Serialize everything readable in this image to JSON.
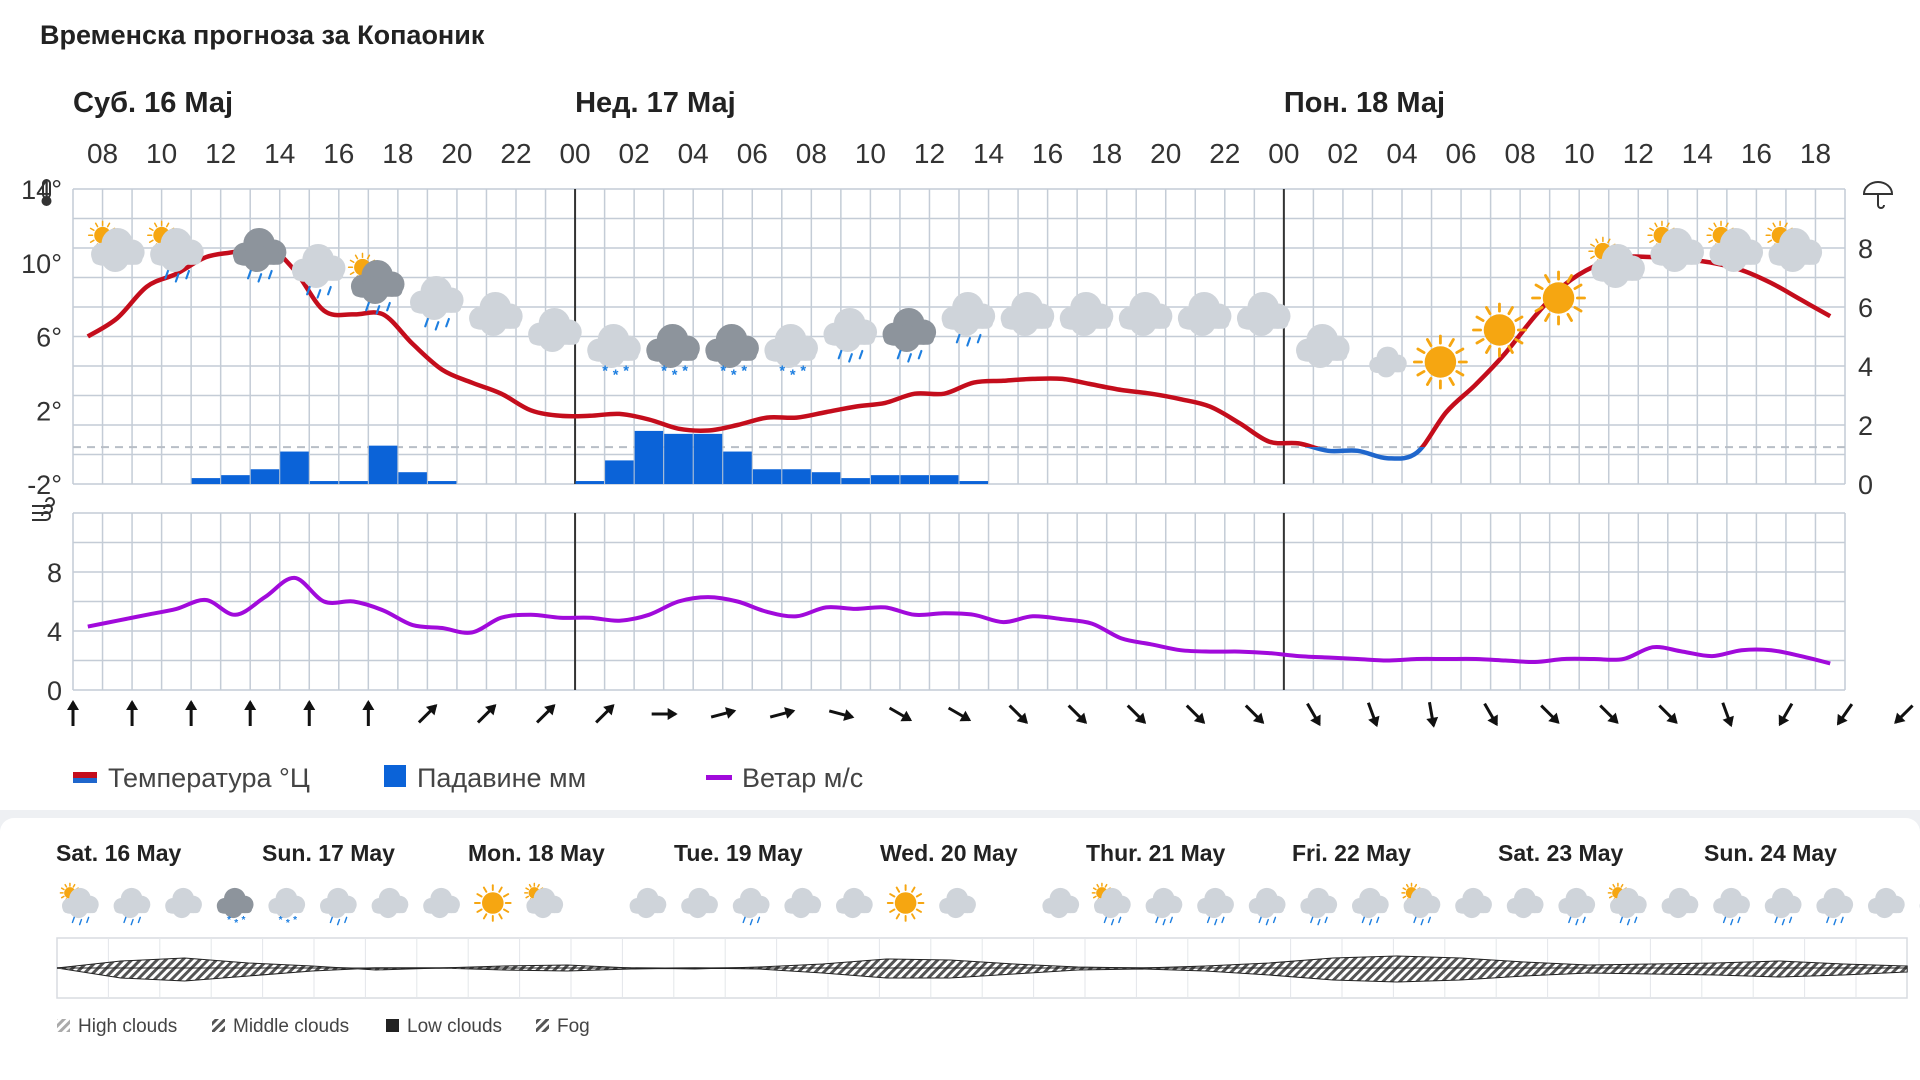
{
  "title": "Временска прогноза за Копаоник",
  "colors": {
    "temp": "#c40d1c",
    "temp_cold": "#1f66cc",
    "precip": "#0b63d8",
    "wind": "#a10adb",
    "grid": "#c4ccd6",
    "cloud": "#cfd4da",
    "sun": "#f6a611",
    "rain": "#1e7fe0"
  },
  "days": [
    {
      "label": "Суб. 16 Мај",
      "col": 0
    },
    {
      "label": "Нед. 17 Мај",
      "col": 17
    },
    {
      "label": "Пон. 18 Мај",
      "col": 41
    }
  ],
  "hour_labels": [
    "08",
    "10",
    "12",
    "14",
    "16",
    "18",
    "20",
    "22",
    "00",
    "02",
    "04",
    "06",
    "08",
    "10",
    "12",
    "14",
    "16",
    "18",
    "20",
    "22",
    "00",
    "02",
    "04",
    "06",
    "08",
    "10",
    "12",
    "14",
    "16",
    "18"
  ],
  "temp_axis": {
    "labels": [
      "14°",
      "10°",
      "6°",
      "2°",
      "-2°"
    ],
    "min": -2,
    "max": 14
  },
  "precip_axis": {
    "labels": [
      "8",
      "6",
      "4",
      "2",
      "0"
    ],
    "max": 10
  },
  "wind_axis": {
    "labels": [
      "8",
      "4",
      "0"
    ],
    "max": 12
  },
  "chart_data": {
    "type": "line",
    "hours": 60,
    "temperature": [
      6,
      7,
      8.7,
      9.4,
      10.3,
      10.6,
      11,
      9.6,
      7.4,
      7.2,
      7.2,
      5.6,
      4.2,
      3.5,
      2.9,
      2,
      1.7,
      1.7,
      1.8,
      1.5,
      1,
      0.9,
      1.2,
      1.6,
      1.6,
      1.9,
      2.2,
      2.4,
      2.9,
      2.9,
      3.5,
      3.6,
      3.7,
      3.7,
      3.4,
      3.1,
      2.9,
      2.6,
      2.2,
      1.3,
      0.3,
      0.2,
      -0.2,
      -0.2,
      -0.6,
      -0.3,
      1.9,
      3.4,
      5.1,
      7.1,
      8.8,
      9.8,
      10.3,
      10.3,
      10.2,
      10,
      9.6,
      8.9,
      8.0,
      7.1
    ],
    "precipitation": [
      0,
      0,
      0,
      0,
      0.2,
      0.3,
      0.5,
      1.1,
      0.1,
      0.1,
      1.3,
      0.4,
      0.1,
      0,
      0,
      0,
      0,
      0.1,
      0.8,
      1.8,
      1.7,
      1.7,
      1.1,
      0.5,
      0.5,
      0.4,
      0.2,
      0.3,
      0.3,
      0.3,
      0.1,
      0,
      0,
      0,
      0,
      0,
      0,
      0,
      0,
      0,
      0,
      0,
      0,
      0,
      0,
      0,
      0,
      0,
      0,
      0,
      0,
      0,
      0,
      0,
      0,
      0,
      0,
      0,
      0,
      0
    ],
    "wind": [
      4.3,
      4.7,
      5.1,
      5.5,
      6.1,
      5.1,
      6.3,
      7.6,
      6,
      6,
      5.4,
      4.4,
      4.2,
      3.9,
      4.9,
      5.1,
      4.9,
      4.9,
      4.7,
      5.1,
      6,
      6.3,
      6,
      5.3,
      5,
      5.6,
      5.5,
      5.6,
      5.1,
      5.2,
      5.1,
      4.6,
      5,
      4.8,
      4.5,
      3.5,
      3.1,
      2.7,
      2.6,
      2.6,
      2.5,
      2.3,
      2.2,
      2.1,
      2,
      2.1,
      2.1,
      2.1,
      2,
      1.9,
      2.1,
      2.1,
      2.1,
      2.9,
      2.6,
      2.3,
      2.7,
      2.7,
      2.3,
      1.8
    ],
    "wind_dir": [
      0,
      0,
      0,
      0,
      0,
      0,
      45,
      45,
      45,
      45,
      90,
      75,
      75,
      105,
      120,
      120,
      135,
      135,
      135,
      135,
      135,
      150,
      160,
      170,
      150,
      135,
      135,
      135,
      160,
      210,
      215,
      225
    ],
    "icons": [
      {
        "col": 1,
        "row": 0,
        "type": "sun-cloud"
      },
      {
        "col": 3,
        "row": 0,
        "type": "sun-cloud-rain"
      },
      {
        "col": 5.8,
        "row": 0,
        "type": "dark-cloud-rain"
      },
      {
        "col": 7.8,
        "row": 1,
        "type": "cloud-rain"
      },
      {
        "col": 9.8,
        "row": 2,
        "type": "sun-dark-rain"
      },
      {
        "col": 11.8,
        "row": 3,
        "type": "cloud-rain"
      },
      {
        "col": 13.8,
        "row": 4,
        "type": "moon-cloud"
      },
      {
        "col": 15.8,
        "row": 5,
        "type": "cloud"
      },
      {
        "col": 17.8,
        "row": 6,
        "type": "cloud-snow"
      },
      {
        "col": 19.8,
        "row": 6,
        "type": "dark-cloud-snow"
      },
      {
        "col": 21.8,
        "row": 6,
        "type": "dark-cloud-snow"
      },
      {
        "col": 23.8,
        "row": 6,
        "type": "cloud-snow"
      },
      {
        "col": 25.8,
        "row": 5,
        "type": "cloud-rain"
      },
      {
        "col": 27.8,
        "row": 5,
        "type": "dark-cloud-rain"
      },
      {
        "col": 29.8,
        "row": 4,
        "type": "cloud-rain"
      },
      {
        "col": 31.8,
        "row": 4,
        "type": "cloud"
      },
      {
        "col": 33.8,
        "row": 4,
        "type": "cloud"
      },
      {
        "col": 35.8,
        "row": 4,
        "type": "cloud"
      },
      {
        "col": 37.8,
        "row": 4,
        "type": "cloud"
      },
      {
        "col": 39.8,
        "row": 4,
        "type": "moon-cloud"
      },
      {
        "col": 41.8,
        "row": 6,
        "type": "moon-cloud"
      },
      {
        "col": 43.8,
        "row": 7,
        "type": "moon-cloud-small"
      },
      {
        "col": 45.8,
        "row": 7,
        "type": "sun"
      },
      {
        "col": 47.8,
        "row": 5,
        "type": "sun"
      },
      {
        "col": 49.8,
        "row": 3,
        "type": "sun"
      },
      {
        "col": 51.8,
        "row": 1,
        "type": "sun-cloud"
      },
      {
        "col": 53.8,
        "row": 0,
        "type": "sun-cloud"
      },
      {
        "col": 55.8,
        "row": 0,
        "type": "sun-cloud"
      },
      {
        "col": 57.8,
        "row": 0,
        "type": "sun-cloud"
      }
    ]
  },
  "legend": {
    "temp": "Температура °Ц",
    "precip": "Падавине мм",
    "wind": "Ветар м/с"
  },
  "week": {
    "days": [
      "Sat. 16 May",
      "Sun. 17 May",
      "Mon. 18 May",
      "Tue. 19 May",
      "Wed. 20 May",
      "Thur. 21 May",
      "Fri. 22 May",
      "Sat. 23 May",
      "Sun. 24 May"
    ],
    "icons": [
      "sun-cloud-rain",
      "cloud-rain",
      "moon-cloud",
      "dark-cloud-snow",
      "cloud-snow",
      "cloud-rain",
      "cloud",
      "moon-cloud",
      "sun",
      "sun-cloud",
      "moon",
      "moon-cloud",
      "cloud",
      "cloud-rain",
      "cloud",
      "moon-cloud",
      "sun",
      "cloud",
      "moon",
      "moon-cloud",
      "sun-cloud-rain",
      "cloud-rain",
      "cloud-rain",
      "cloud-rain",
      "cloud-rain",
      "cloud-rain",
      "sun-cloud-rain",
      "cloud",
      "cloud",
      "cloud-rain",
      "sun-cloud-rain",
      "moon-cloud",
      "cloud-rain",
      "cloud-rain",
      "cloud-rain",
      "moon-cloud",
      "cloud"
    ],
    "legend": [
      "High clouds",
      "Middle clouds",
      "Low clouds",
      "Fog"
    ]
  }
}
